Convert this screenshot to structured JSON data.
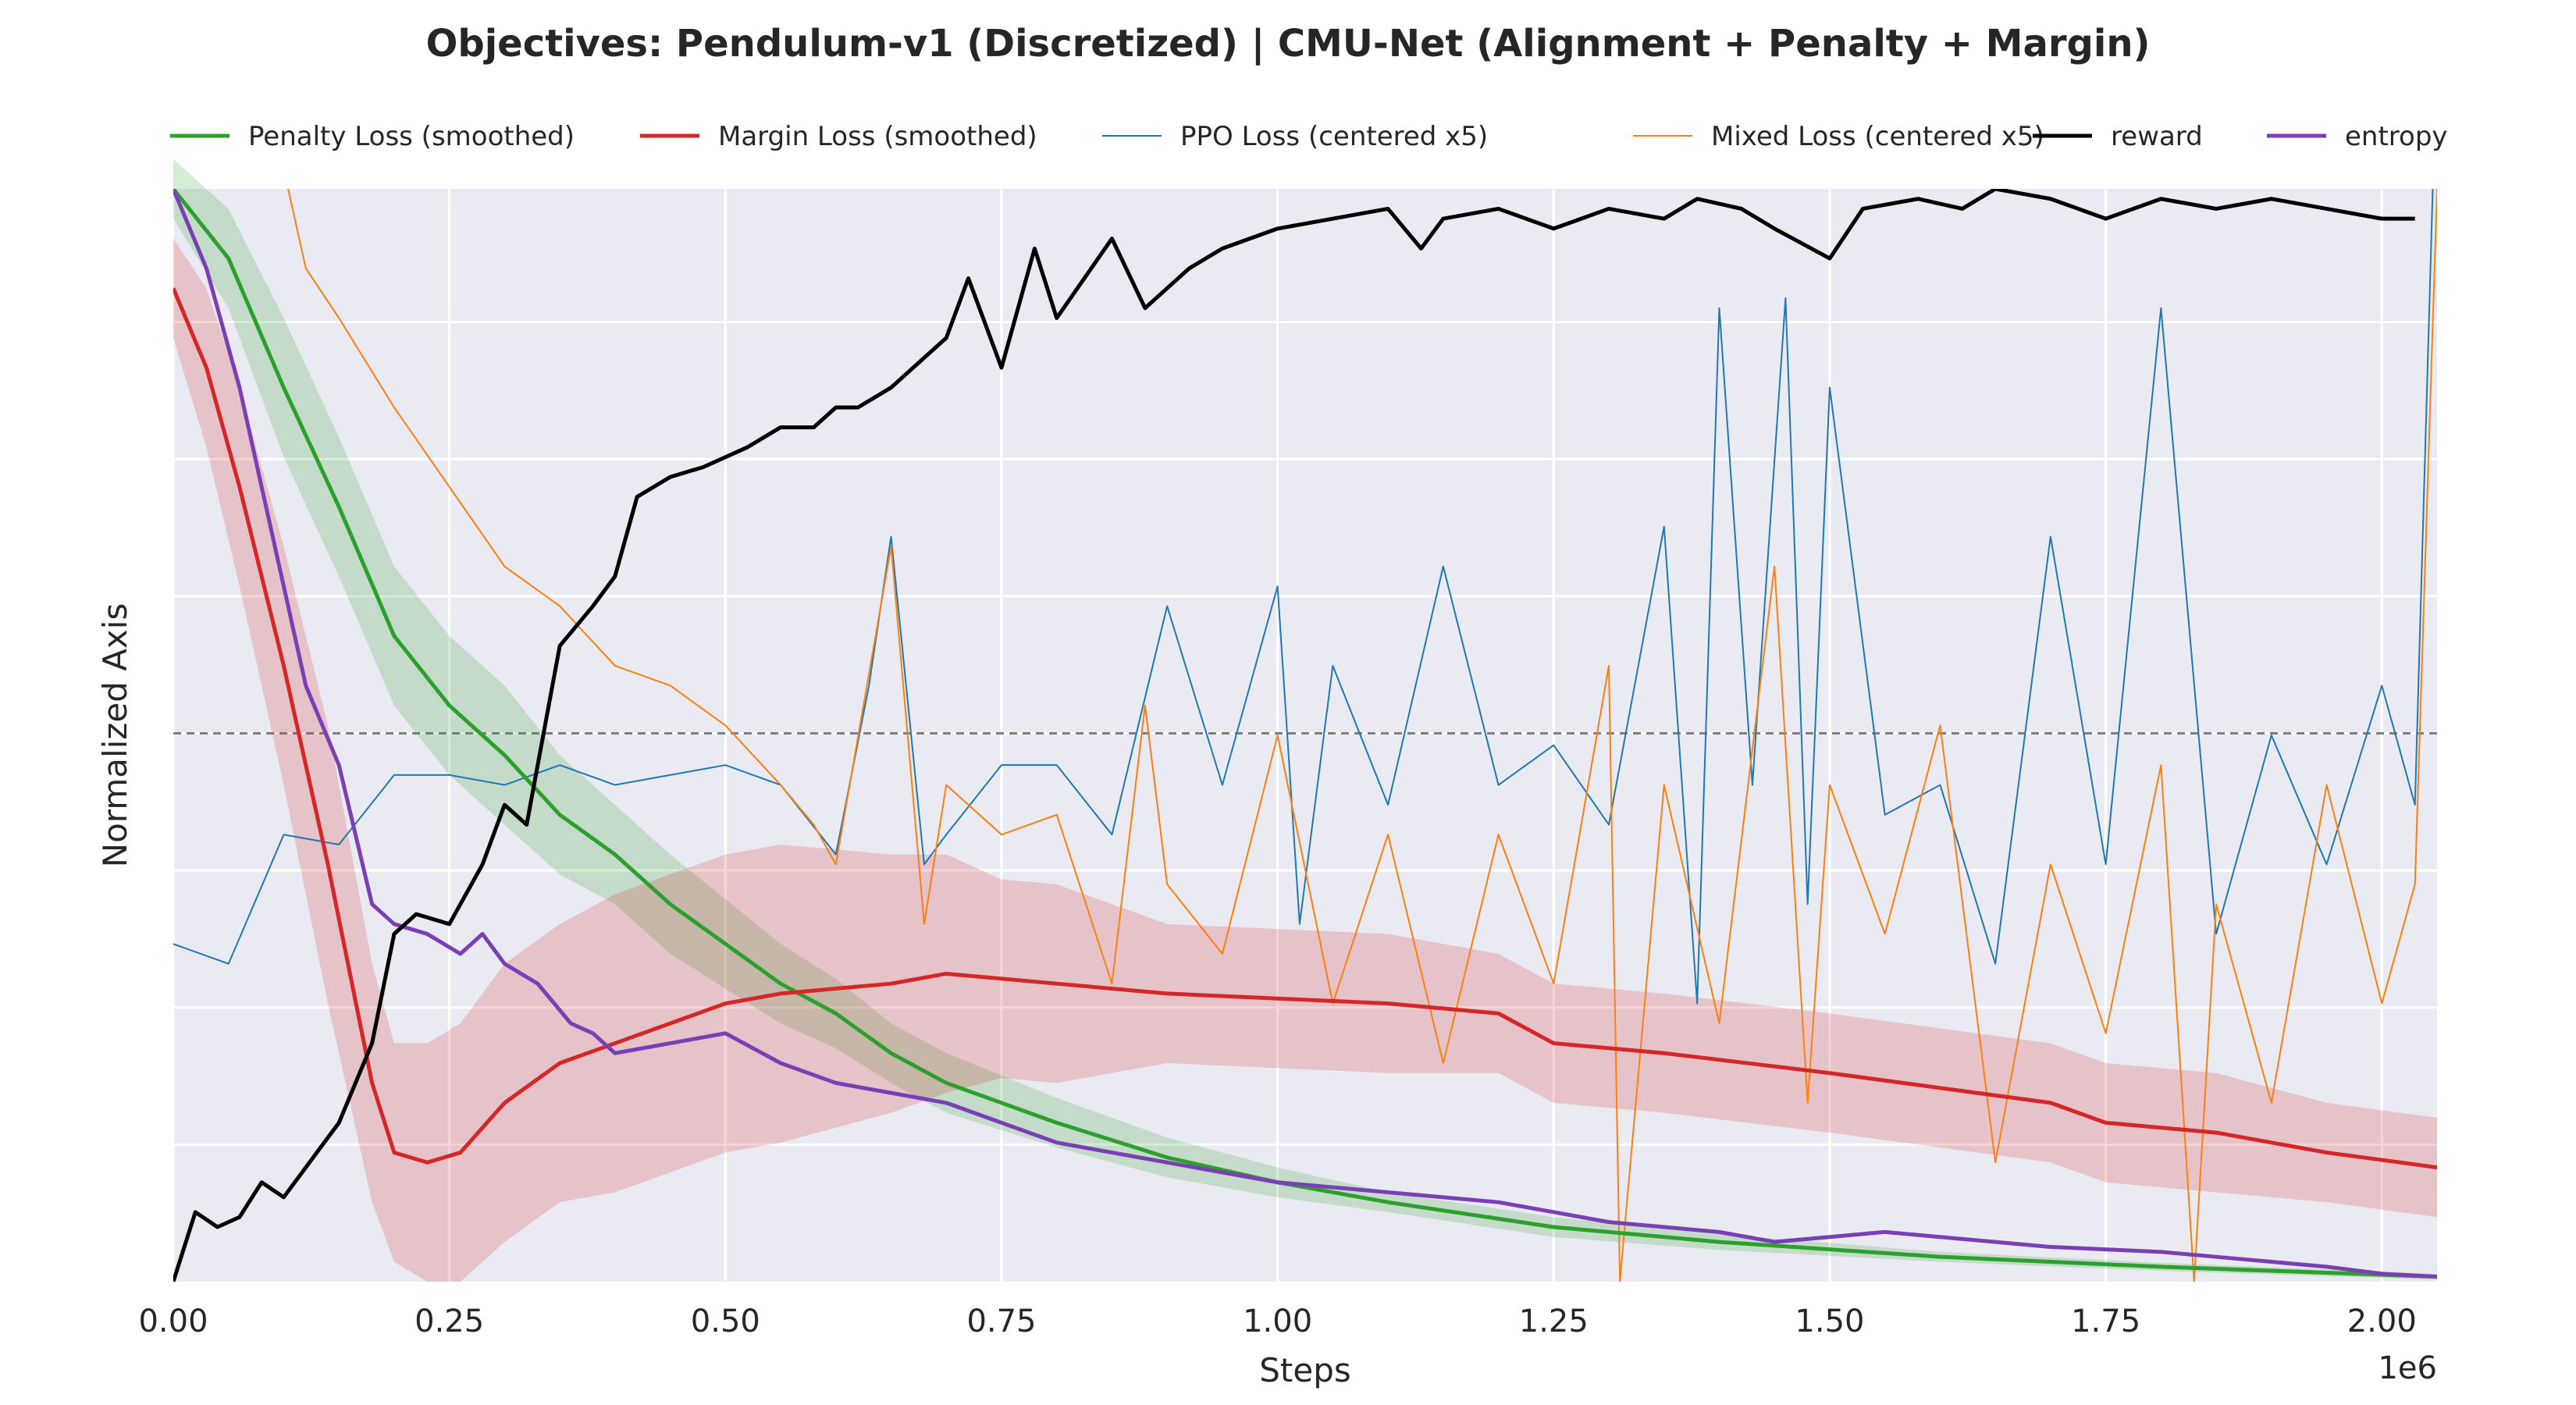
{
  "chart_data": {
    "type": "line",
    "title": "Objectives: Pendulum-v1 (Discretized) | CMU-Net (Alignment + Penalty + Margin)",
    "xlabel": "Steps",
    "ylabel": "Normalized Axis",
    "x_offset_label": "1e6",
    "xlim": [
      0,
      2.05
    ],
    "ylim": [
      0,
      1.1
    ],
    "x_ticks": [
      0.0,
      0.25,
      0.5,
      0.75,
      1.0,
      1.25,
      1.5,
      1.75,
      2.0
    ],
    "x_tick_labels": [
      "0.00",
      "0.25",
      "0.50",
      "0.75",
      "1.00",
      "1.25",
      "1.50",
      "1.75",
      "2.00"
    ],
    "y_gridlines": [
      0.138,
      0.276,
      0.414,
      0.552,
      0.69,
      0.828,
      0.966
    ],
    "reference_line": 0.552,
    "grid": true,
    "background": "#eaeaf2",
    "legend": {
      "placement": "top",
      "entries": [
        {
          "label": "Penalty Loss (smoothed)",
          "color": "#2ca02c",
          "width": 5
        },
        {
          "label": "Margin Loss (smoothed)",
          "color": "#d62728",
          "width": 5
        },
        {
          "label": "PPO Loss (centered x5)",
          "color": "#1f77b4",
          "width": 2
        },
        {
          "label": "Mixed Loss (centered x5)",
          "color": "#ff7f0e",
          "width": 2
        },
        {
          "label": "reward",
          "color": "#000000",
          "width": 5
        },
        {
          "label": "entropy",
          "color": "#7b3fb5",
          "width": 5
        }
      ]
    },
    "series": [
      {
        "name": "Penalty Loss (smoothed)",
        "color": "#2ca02c",
        "width": 5,
        "x": [
          0,
          0.05,
          0.1,
          0.15,
          0.2,
          0.25,
          0.3,
          0.35,
          0.4,
          0.45,
          0.5,
          0.55,
          0.6,
          0.65,
          0.7,
          0.8,
          0.9,
          1.0,
          1.1,
          1.25,
          1.4,
          1.6,
          1.8,
          2.05
        ],
        "y": [
          1.1,
          1.03,
          0.9,
          0.78,
          0.65,
          0.58,
          0.53,
          0.47,
          0.43,
          0.38,
          0.34,
          0.3,
          0.27,
          0.23,
          0.2,
          0.16,
          0.125,
          0.1,
          0.08,
          0.055,
          0.04,
          0.025,
          0.015,
          0.005
        ],
        "band": [
          0.03,
          0.05,
          0.07,
          0.07,
          0.07,
          0.07,
          0.07,
          0.06,
          0.05,
          0.05,
          0.045,
          0.04,
          0.035,
          0.03,
          0.03,
          0.025,
          0.02,
          0.015,
          0.01,
          0.01,
          0.008,
          0.005,
          0.004,
          0.003
        ],
        "band_color": "#2ca02c"
      },
      {
        "name": "Margin Loss (smoothed)",
        "color": "#d62728",
        "width": 5,
        "x": [
          0,
          0.03,
          0.06,
          0.1,
          0.14,
          0.18,
          0.2,
          0.23,
          0.26,
          0.3,
          0.35,
          0.4,
          0.45,
          0.5,
          0.55,
          0.6,
          0.65,
          0.7,
          0.75,
          0.8,
          0.9,
          1.0,
          1.1,
          1.2,
          1.25,
          1.35,
          1.5,
          1.6,
          1.7,
          1.75,
          1.85,
          1.95,
          2.05
        ],
        "y": [
          1.0,
          0.92,
          0.8,
          0.62,
          0.42,
          0.2,
          0.13,
          0.12,
          0.13,
          0.18,
          0.22,
          0.24,
          0.26,
          0.28,
          0.29,
          0.295,
          0.3,
          0.31,
          0.305,
          0.3,
          0.29,
          0.285,
          0.28,
          0.27,
          0.24,
          0.23,
          0.21,
          0.195,
          0.18,
          0.16,
          0.15,
          0.13,
          0.115
        ],
        "band": [
          0.05,
          0.08,
          0.1,
          0.12,
          0.14,
          0.12,
          0.11,
          0.12,
          0.13,
          0.14,
          0.14,
          0.15,
          0.15,
          0.15,
          0.15,
          0.14,
          0.13,
          0.12,
          0.1,
          0.1,
          0.07,
          0.07,
          0.07,
          0.06,
          0.06,
          0.06,
          0.06,
          0.06,
          0.06,
          0.06,
          0.06,
          0.05,
          0.05
        ],
        "band_color": "#d62728"
      },
      {
        "name": "PPO Loss (centered x5)",
        "color": "#1f77b4",
        "width": 2,
        "x": [
          0,
          0.05,
          0.1,
          0.15,
          0.2,
          0.25,
          0.3,
          0.35,
          0.4,
          0.45,
          0.5,
          0.55,
          0.6,
          0.63,
          0.65,
          0.68,
          0.7,
          0.75,
          0.8,
          0.85,
          0.9,
          0.95,
          1.0,
          1.02,
          1.05,
          1.1,
          1.15,
          1.2,
          1.25,
          1.3,
          1.35,
          1.38,
          1.4,
          1.43,
          1.46,
          1.48,
          1.5,
          1.55,
          1.6,
          1.65,
          1.7,
          1.75,
          1.8,
          1.85,
          1.9,
          1.95,
          2.0,
          2.03,
          2.05
        ],
        "y": [
          0.34,
          0.32,
          0.45,
          0.44,
          0.51,
          0.51,
          0.5,
          0.52,
          0.5,
          0.51,
          0.52,
          0.5,
          0.43,
          0.6,
          0.75,
          0.42,
          0.45,
          0.52,
          0.52,
          0.45,
          0.68,
          0.5,
          0.7,
          0.36,
          0.62,
          0.48,
          0.72,
          0.5,
          0.54,
          0.46,
          0.76,
          0.28,
          0.98,
          0.5,
          0.99,
          0.38,
          0.9,
          0.47,
          0.5,
          0.32,
          0.75,
          0.42,
          0.98,
          0.35,
          0.55,
          0.42,
          0.6,
          0.48,
          1.25
        ]
      },
      {
        "name": "Mixed Loss (centered x5)",
        "color": "#ff7f0e",
        "width": 2,
        "x": [
          0.1,
          0.12,
          0.15,
          0.2,
          0.25,
          0.3,
          0.35,
          0.4,
          0.45,
          0.5,
          0.55,
          0.58,
          0.6,
          0.65,
          0.68,
          0.7,
          0.75,
          0.8,
          0.85,
          0.88,
          0.9,
          0.95,
          1.0,
          1.05,
          1.1,
          1.15,
          1.2,
          1.25,
          1.3,
          1.31,
          1.35,
          1.4,
          1.45,
          1.48,
          1.5,
          1.55,
          1.6,
          1.65,
          1.7,
          1.75,
          1.8,
          1.83,
          1.85,
          1.9,
          1.95,
          2.0,
          2.03,
          2.05
        ],
        "y": [
          1.12,
          1.02,
          0.97,
          0.88,
          0.8,
          0.72,
          0.68,
          0.62,
          0.6,
          0.56,
          0.5,
          0.46,
          0.42,
          0.74,
          0.36,
          0.5,
          0.45,
          0.47,
          0.3,
          0.58,
          0.4,
          0.33,
          0.55,
          0.28,
          0.45,
          0.22,
          0.45,
          0.3,
          0.62,
          0.0,
          0.5,
          0.26,
          0.72,
          0.18,
          0.5,
          0.35,
          0.56,
          0.12,
          0.42,
          0.25,
          0.52,
          0.0,
          0.38,
          0.18,
          0.5,
          0.28,
          0.4,
          1.1
        ]
      },
      {
        "name": "reward",
        "color": "#000000",
        "width": 5,
        "x": [
          0,
          0.02,
          0.04,
          0.06,
          0.08,
          0.1,
          0.13,
          0.15,
          0.18,
          0.2,
          0.22,
          0.25,
          0.28,
          0.3,
          0.32,
          0.35,
          0.38,
          0.4,
          0.42,
          0.45,
          0.48,
          0.52,
          0.55,
          0.58,
          0.6,
          0.62,
          0.65,
          0.7,
          0.72,
          0.75,
          0.78,
          0.8,
          0.85,
          0.88,
          0.92,
          0.95,
          1.0,
          1.05,
          1.1,
          1.13,
          1.15,
          1.2,
          1.25,
          1.3,
          1.35,
          1.38,
          1.42,
          1.45,
          1.5,
          1.53,
          1.58,
          1.62,
          1.65,
          1.7,
          1.75,
          1.8,
          1.85,
          1.9,
          1.95,
          2.0,
          2.03
        ],
        "y": [
          0.0,
          0.07,
          0.055,
          0.065,
          0.1,
          0.085,
          0.13,
          0.16,
          0.24,
          0.35,
          0.37,
          0.36,
          0.42,
          0.48,
          0.46,
          0.64,
          0.68,
          0.71,
          0.79,
          0.81,
          0.82,
          0.84,
          0.86,
          0.86,
          0.88,
          0.88,
          0.9,
          0.95,
          1.01,
          0.92,
          1.04,
          0.97,
          1.05,
          0.98,
          1.02,
          1.04,
          1.06,
          1.07,
          1.08,
          1.04,
          1.07,
          1.08,
          1.06,
          1.08,
          1.07,
          1.09,
          1.08,
          1.06,
          1.03,
          1.08,
          1.09,
          1.08,
          1.1,
          1.09,
          1.07,
          1.09,
          1.08,
          1.09,
          1.08,
          1.07,
          1.07
        ]
      },
      {
        "name": "entropy",
        "color": "#7b3fb5",
        "width": 5,
        "x": [
          0,
          0.03,
          0.06,
          0.09,
          0.12,
          0.15,
          0.18,
          0.2,
          0.23,
          0.26,
          0.28,
          0.3,
          0.33,
          0.36,
          0.38,
          0.4,
          0.45,
          0.5,
          0.55,
          0.6,
          0.65,
          0.7,
          0.75,
          0.8,
          0.85,
          0.9,
          0.95,
          1.0,
          1.1,
          1.2,
          1.3,
          1.4,
          1.45,
          1.5,
          1.55,
          1.6,
          1.65,
          1.7,
          1.8,
          1.85,
          1.9,
          1.95,
          2.0,
          2.05
        ],
        "y": [
          1.1,
          1.02,
          0.9,
          0.75,
          0.6,
          0.52,
          0.38,
          0.36,
          0.35,
          0.33,
          0.35,
          0.32,
          0.3,
          0.26,
          0.25,
          0.23,
          0.24,
          0.25,
          0.22,
          0.2,
          0.19,
          0.18,
          0.16,
          0.14,
          0.13,
          0.12,
          0.11,
          0.1,
          0.09,
          0.08,
          0.06,
          0.05,
          0.04,
          0.045,
          0.05,
          0.045,
          0.04,
          0.035,
          0.03,
          0.025,
          0.02,
          0.015,
          0.008,
          0.005
        ]
      }
    ]
  }
}
